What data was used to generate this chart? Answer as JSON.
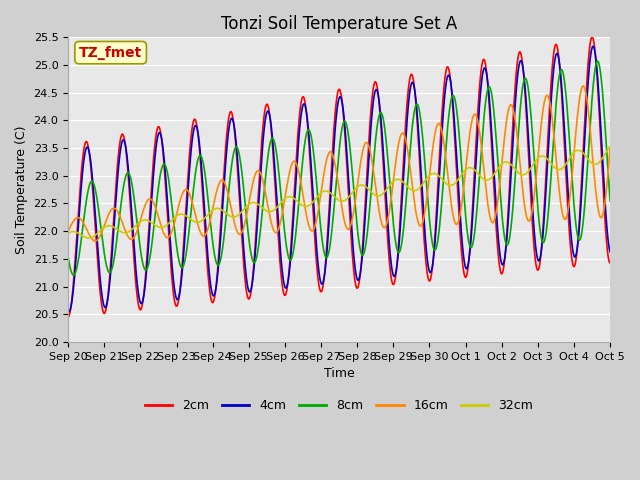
{
  "title": "Tonzi Soil Temperature Set A",
  "xlabel": "Time",
  "ylabel": "Soil Temperature (C)",
  "annotation": "TZ_fmet",
  "ylim": [
    20.0,
    25.5
  ],
  "yticks": [
    20.0,
    20.5,
    21.0,
    21.5,
    22.0,
    22.5,
    23.0,
    23.5,
    24.0,
    24.5,
    25.0,
    25.5
  ],
  "xtick_labels": [
    "Sep 20",
    "Sep 21",
    "Sep 22",
    "Sep 23",
    "Sep 24",
    "Sep 25",
    "Sep 26",
    "Sep 27",
    "Sep 28",
    "Sep 29",
    "Sep 30",
    "Oct 1",
    "Oct 2",
    "Oct 3",
    "Oct 4",
    "Oct 5"
  ],
  "legend_labels": [
    "2cm",
    "4cm",
    "8cm",
    "16cm",
    "32cm"
  ],
  "line_colors": [
    "#ff0000",
    "#0000cc",
    "#00aa00",
    "#ff8800",
    "#cccc00"
  ],
  "title_fontsize": 12,
  "label_fontsize": 9,
  "tick_fontsize": 8,
  "annotation_fontsize": 10,
  "fig_facecolor": "#d0d0d0",
  "ax_facecolor": "#e8e8e8",
  "grid_color": "#ffffff"
}
